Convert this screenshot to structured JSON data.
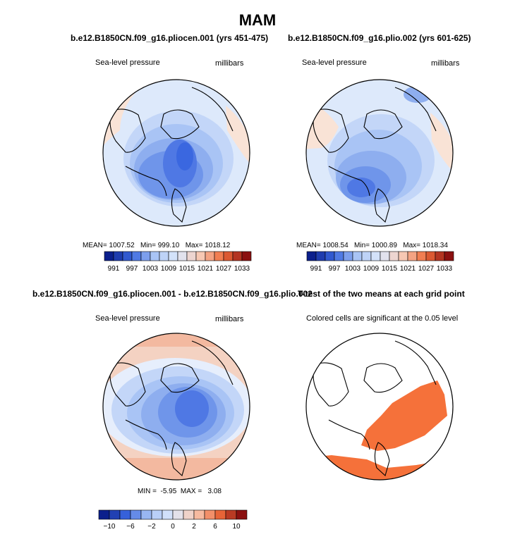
{
  "figure": {
    "title": "MAM"
  },
  "colors": {
    "low_dark": "#0b1f8c",
    "low_mid": "#3a67e0",
    "low_light": "#a9c4f5",
    "near_zero": "#dde9fb",
    "high_light": "#f7c8b3",
    "high_mid": "#ef6b3a",
    "high_dark": "#8b1010",
    "significant": "#f5713a"
  },
  "chart_data": [
    {
      "type": "heatmap",
      "title": "b.e12.B1850CN.f09_g16.pliocen.001 (yrs 451-475)",
      "left_label": "Sea-level pressure",
      "right_label": "millibars",
      "stats": {
        "mean_label": "MEAN=",
        "mean": "1007.52",
        "min_label": "Min=",
        "min": "999.10",
        "max_label": "Max=",
        "max": "1018.12"
      },
      "colorbar_ticks": [
        "991",
        "997",
        "1003",
        "1009",
        "1015",
        "1021",
        "1027",
        "1033"
      ],
      "colorbar_levels": 16
    },
    {
      "type": "heatmap",
      "title": "b.e12.B1850CN.f09_g16.plio.002 (yrs 601-625)",
      "left_label": "Sea-level pressure",
      "right_label": "millibars",
      "stats": {
        "mean_label": "MEAN=",
        "mean": "1008.54",
        "min_label": "Min=",
        "min": "1000.89",
        "max_label": "Max=",
        "max": "1018.34"
      },
      "colorbar_ticks": [
        "991",
        "997",
        "1003",
        "1009",
        "1015",
        "1021",
        "1027",
        "1033"
      ],
      "colorbar_levels": 16
    },
    {
      "type": "heatmap",
      "title": "b.e12.B1850CN.f09_g16.pliocen.001 - b.e12.B1850CN.f09_g16.plio.002",
      "left_label": "Sea-level pressure",
      "right_label": "millibars",
      "stats": {
        "min_label": "MIN =",
        "min": "-5.95",
        "max_label": "MAX =",
        "max": "3.08"
      },
      "colorbar_ticks": [
        "−10",
        "−6",
        "−2",
        "0",
        "2",
        "6",
        "10"
      ],
      "colorbar_levels": 14
    },
    {
      "type": "heatmap",
      "title": "T-test of the two means at each grid point",
      "left_label": "Colored cells are significant at the 0.05 level"
    }
  ]
}
